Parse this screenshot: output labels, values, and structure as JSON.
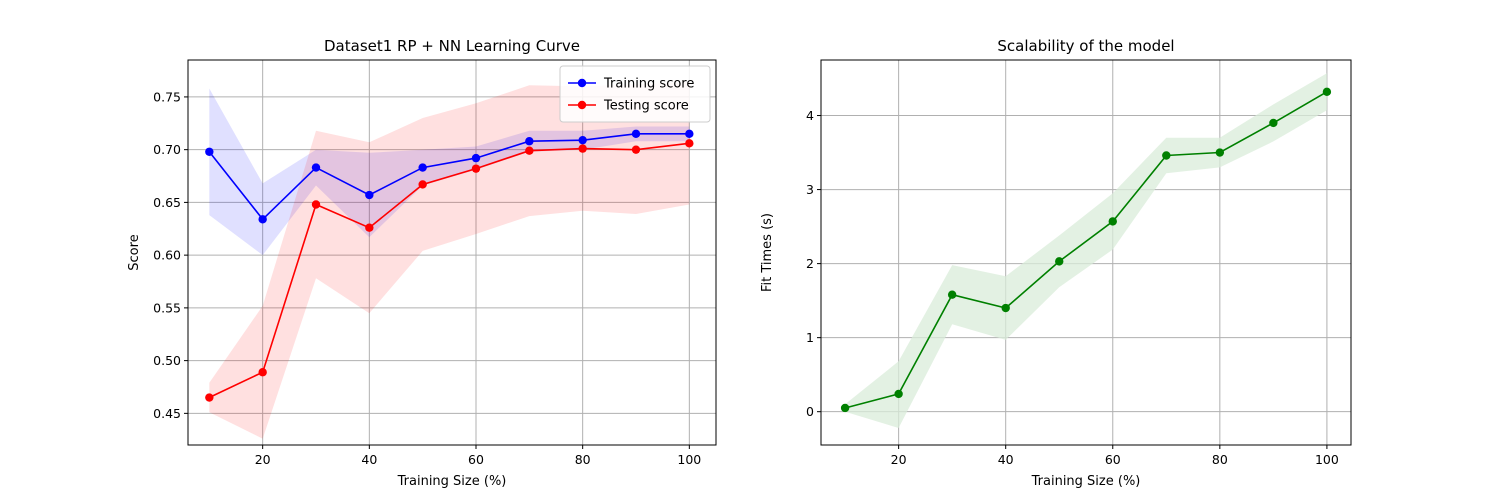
{
  "chart_data": [
    {
      "type": "line",
      "title": "Dataset1 RP + NN Learning Curve",
      "xlabel": "Training Size (%)",
      "ylabel": "Score",
      "xlim": [
        6,
        105
      ],
      "ylim": [
        0.42,
        0.785
      ],
      "x_ticks": [
        "20",
        "40",
        "60",
        "80",
        "100"
      ],
      "y_ticks": [
        "0.45",
        "0.50",
        "0.55",
        "0.60",
        "0.65",
        "0.70",
        "0.75"
      ],
      "grid": true,
      "legend_position": "top-right",
      "x": [
        10,
        20,
        30,
        40,
        50,
        60,
        70,
        80,
        90,
        100
      ],
      "series": [
        {
          "name": "Training score",
          "color": "#0000ff",
          "values": [
            0.698,
            0.634,
            0.683,
            0.657,
            0.683,
            0.692,
            0.708,
            0.709,
            0.715,
            0.715
          ],
          "band_upper": [
            0.758,
            0.668,
            0.7,
            0.697,
            0.7,
            0.703,
            0.718,
            0.718,
            0.722,
            0.722
          ],
          "band_lower": [
            0.638,
            0.6,
            0.666,
            0.617,
            0.666,
            0.681,
            0.698,
            0.7,
            0.708,
            0.708
          ]
        },
        {
          "name": "Testing score",
          "color": "#ff0000",
          "values": [
            0.465,
            0.489,
            0.648,
            0.626,
            0.667,
            0.682,
            0.699,
            0.701,
            0.7,
            0.706
          ],
          "band_upper": [
            0.479,
            0.552,
            0.718,
            0.707,
            0.73,
            0.744,
            0.761,
            0.76,
            0.762,
            0.764
          ],
          "band_lower": [
            0.451,
            0.426,
            0.578,
            0.545,
            0.604,
            0.62,
            0.637,
            0.642,
            0.639,
            0.648
          ]
        }
      ]
    },
    {
      "type": "line",
      "title": "Scalability of the model",
      "xlabel": "Training Size (%)",
      "ylabel": "Fit Times (s)",
      "xlim": [
        5.5,
        104.5
      ],
      "ylim": [
        -0.45,
        4.75
      ],
      "x_ticks": [
        "20",
        "40",
        "60",
        "80",
        "100"
      ],
      "y_ticks": [
        "0",
        "1",
        "2",
        "3",
        "4"
      ],
      "grid": true,
      "x": [
        10,
        20,
        30,
        40,
        50,
        60,
        70,
        80,
        90,
        100
      ],
      "series": [
        {
          "color": "#008000",
          "band_color": "#d9ecd9",
          "values": [
            0.05,
            0.24,
            1.58,
            1.4,
            2.03,
            2.57,
            3.46,
            3.5,
            3.9,
            4.32
          ],
          "band_upper": [
            0.1,
            0.68,
            1.98,
            1.83,
            2.38,
            2.95,
            3.7,
            3.7,
            4.15,
            4.57
          ],
          "band_lower": [
            0.0,
            -0.22,
            1.18,
            0.97,
            1.68,
            2.19,
            3.22,
            3.3,
            3.65,
            4.07
          ]
        }
      ]
    }
  ]
}
